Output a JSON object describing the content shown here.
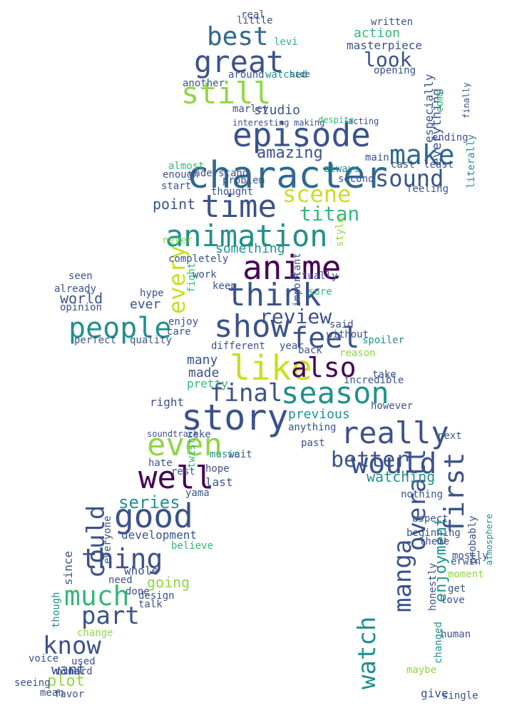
{
  "palette": {
    "deep_purple": "#440154",
    "indigo": "#3b528b",
    "steel_blue": "#31688e",
    "teal": "#21918c",
    "green": "#35b779",
    "lime": "#90d743",
    "yellow": "#c8e020"
  },
  "words": [
    {
      "text": "character",
      "color": "#31688e"
    },
    {
      "text": "episode",
      "color": "#3b528b"
    },
    {
      "text": "anime",
      "color": "#440154"
    },
    {
      "text": "animation",
      "color": "#21918c"
    },
    {
      "text": "story",
      "color": "#3b528b"
    },
    {
      "text": "like",
      "color": "#c8e020"
    },
    {
      "text": "think",
      "color": "#3b528b"
    },
    {
      "text": "show",
      "color": "#3b528b"
    },
    {
      "text": "time",
      "color": "#3b528b"
    },
    {
      "text": "great",
      "color": "#3b528b"
    },
    {
      "text": "still",
      "color": "#90d743"
    },
    {
      "text": "best",
      "color": "#31688e"
    },
    {
      "text": "make",
      "color": "#31688e"
    },
    {
      "text": "sound",
      "color": "#3b528b"
    },
    {
      "text": "scene",
      "color": "#c8e020"
    },
    {
      "text": "people",
      "color": "#21918c"
    },
    {
      "text": "feel",
      "color": "#3b528b"
    },
    {
      "text": "also",
      "color": "#440154"
    },
    {
      "text": "season",
      "color": "#21918c"
    },
    {
      "text": "final",
      "color": "#3b528b"
    },
    {
      "text": "really",
      "color": "#3b528b"
    },
    {
      "text": "even",
      "color": "#90d743"
    },
    {
      "text": "well",
      "color": "#440154"
    },
    {
      "text": "good",
      "color": "#3b528b"
    },
    {
      "text": "would",
      "color": "#3b528b"
    },
    {
      "text": "first",
      "color": "#3b528b"
    },
    {
      "text": "overall",
      "color": "#3b528b"
    },
    {
      "text": "manga",
      "color": "#3b528b"
    },
    {
      "text": "watch",
      "color": "#21918c"
    },
    {
      "text": "thing",
      "color": "#3b528b"
    },
    {
      "text": "much",
      "color": "#35b779"
    },
    {
      "text": "could",
      "color": "#3b528b"
    },
    {
      "text": "part",
      "color": "#3b528b"
    },
    {
      "text": "know",
      "color": "#3b528b"
    },
    {
      "text": "better",
      "color": "#3b528b"
    },
    {
      "text": "every",
      "color": "#c8e020"
    },
    {
      "text": "review",
      "color": "#3b528b"
    },
    {
      "text": "titan",
      "color": "#35b779"
    },
    {
      "text": "look",
      "color": "#3b528b"
    },
    {
      "text": "amazing",
      "color": "#3b528b"
    },
    {
      "text": "series",
      "color": "#21918c"
    },
    {
      "text": "watching",
      "color": "#21918c"
    },
    {
      "text": "enjoyment",
      "color": "#21918c"
    },
    {
      "text": "action",
      "color": "#35b779"
    },
    {
      "text": "masterpiece",
      "color": "#3b528b"
    },
    {
      "text": "everything",
      "color": "#3b528b"
    },
    {
      "text": "world",
      "color": "#3b528b"
    },
    {
      "text": "plot",
      "color": "#90d743"
    },
    {
      "text": "going",
      "color": "#90d743"
    },
    {
      "text": "development",
      "color": "#3b528b"
    },
    {
      "text": "previous",
      "color": "#21918c"
    },
    {
      "text": "something",
      "color": "#21918c"
    },
    {
      "text": "studio",
      "color": "#3b528b"
    },
    {
      "text": "point",
      "color": "#3b528b"
    },
    {
      "text": "many",
      "color": "#3b528b"
    },
    {
      "text": "made",
      "color": "#3b528b"
    },
    {
      "text": "pretty",
      "color": "#35b779"
    },
    {
      "text": "right",
      "color": "#3b528b"
    },
    {
      "text": "want",
      "color": "#3b528b"
    },
    {
      "text": "ever",
      "color": "#3b528b"
    },
    {
      "text": "since",
      "color": "#3b528b"
    },
    {
      "text": "whole",
      "color": "#3b528b"
    },
    {
      "text": "last",
      "color": "#3b528b"
    },
    {
      "text": "music",
      "color": "#21918c"
    },
    {
      "text": "seen",
      "color": "#3b528b"
    },
    {
      "text": "opinion",
      "color": "#3b528b"
    },
    {
      "text": "perfect",
      "color": "#3b528b"
    },
    {
      "text": "quality",
      "color": "#3b528b"
    },
    {
      "text": "hype",
      "color": "#3b528b"
    },
    {
      "text": "enjoy",
      "color": "#3b528b"
    },
    {
      "text": "care",
      "color": "#3b528b"
    },
    {
      "text": "fight",
      "color": "#35b779"
    },
    {
      "text": "understand",
      "color": "#3b528b"
    },
    {
      "text": "thought",
      "color": "#3b528b"
    },
    {
      "text": "start",
      "color": "#3b528b"
    },
    {
      "text": "always",
      "color": "#21918c"
    },
    {
      "text": "second",
      "color": "#3b528b"
    },
    {
      "text": "spoiler",
      "color": "#21918c"
    },
    {
      "text": "opening",
      "color": "#3b528b"
    },
    {
      "text": "ending",
      "color": "#3b528b"
    },
    {
      "text": "feeling",
      "color": "#3b528b"
    },
    {
      "text": "least",
      "color": "#3b528b"
    },
    {
      "text": "cast",
      "color": "#3b528b"
    },
    {
      "text": "main",
      "color": "#3b528b"
    },
    {
      "text": "problem",
      "color": "#3b528b"
    },
    {
      "text": "written",
      "color": "#3b528b"
    },
    {
      "text": "marley",
      "color": "#3b528b"
    },
    {
      "text": "around",
      "color": "#3b528b"
    },
    {
      "text": "watched",
      "color": "#21918c"
    },
    {
      "text": "another",
      "color": "#3b528b"
    },
    {
      "text": "little",
      "color": "#3b528b"
    },
    {
      "text": "levi",
      "color": "#35b779"
    },
    {
      "text": "interesting",
      "color": "#3b528b"
    },
    {
      "text": "making",
      "color": "#3b528b"
    },
    {
      "text": "despite",
      "color": "#35b779"
    },
    {
      "text": "acting",
      "color": "#3b528b"
    },
    {
      "text": "side",
      "color": "#3b528b"
    },
    {
      "text": "come",
      "color": "#35b779"
    },
    {
      "text": "especially",
      "color": "#3b528b"
    },
    {
      "text": "never",
      "color": "#90d743"
    },
    {
      "text": "completely",
      "color": "#3b528b"
    },
    {
      "text": "work",
      "color": "#3b528b"
    },
    {
      "text": "actually",
      "color": "#3b528b"
    },
    {
      "text": "keep",
      "color": "#3b528b"
    },
    {
      "text": "sure",
      "color": "#35b779"
    },
    {
      "text": "said",
      "color": "#3b528b"
    },
    {
      "text": "without",
      "color": "#3b528b"
    },
    {
      "text": "year",
      "color": "#3b528b"
    },
    {
      "text": "back",
      "color": "#3b528b"
    },
    {
      "text": "different",
      "color": "#3b528b"
    },
    {
      "text": "reason",
      "color": "#90d743"
    },
    {
      "text": "take",
      "color": "#3b528b"
    },
    {
      "text": "however",
      "color": "#3b528b"
    },
    {
      "text": "anything",
      "color": "#3b528b"
    },
    {
      "text": "soundtrack",
      "color": "#3b528b"
    },
    {
      "text": "zeke",
      "color": "#3b528b"
    },
    {
      "text": "wait",
      "color": "#3b528b"
    },
    {
      "text": "hate",
      "color": "#3b528b"
    },
    {
      "text": "rest",
      "color": "#3b528b"
    },
    {
      "text": "hope",
      "color": "#3b528b"
    },
    {
      "text": "yama",
      "color": "#3b528b"
    },
    {
      "text": "next",
      "color": "#3b528b"
    },
    {
      "text": "past",
      "color": "#3b528b"
    },
    {
      "text": "nothing",
      "color": "#3b528b"
    },
    {
      "text": "theme",
      "color": "#3b528b"
    },
    {
      "text": "love",
      "color": "#3b528b"
    },
    {
      "text": "moment",
      "color": "#90d743"
    },
    {
      "text": "get",
      "color": "#3b528b"
    },
    {
      "text": "honestly",
      "color": "#3b528b"
    },
    {
      "text": "changed",
      "color": "#21918c"
    },
    {
      "text": "probably",
      "color": "#3b528b"
    },
    {
      "text": "give",
      "color": "#3b528b"
    },
    {
      "text": "maybe",
      "color": "#90d743"
    },
    {
      "text": "single",
      "color": "#3b528b"
    },
    {
      "text": "believe",
      "color": "#35b779"
    },
    {
      "text": "design",
      "color": "#3b528b"
    },
    {
      "text": "done",
      "color": "#3b528b"
    },
    {
      "text": "change",
      "color": "#90d743"
    },
    {
      "text": "used",
      "color": "#3b528b"
    },
    {
      "text": "hard",
      "color": "#3b528b"
    },
    {
      "text": "mean",
      "color": "#3b528b"
    },
    {
      "text": "favor",
      "color": "#3b528b"
    },
    {
      "text": "seeing",
      "color": "#3b528b"
    },
    {
      "text": "voice",
      "color": "#3b528b"
    },
    {
      "text": "mind",
      "color": "#3b528b"
    },
    {
      "text": "though",
      "color": "#21918c"
    },
    {
      "text": "need",
      "color": "#3b528b"
    },
    {
      "text": "everyone",
      "color": "#3b528b"
    },
    {
      "text": "already",
      "color": "#3b528b"
    },
    {
      "text": "real",
      "color": "#3b528b"
    },
    {
      "text": "atmosphere",
      "color": "#21918c"
    },
    {
      "text": "erwin",
      "color": "#3b528b"
    },
    {
      "text": "aspect",
      "color": "#3b528b"
    },
    {
      "text": "beginning",
      "color": "#3b528b"
    },
    {
      "text": "human",
      "color": "#3b528b"
    },
    {
      "text": "talk",
      "color": "#3b528b"
    },
    {
      "text": "almost",
      "color": "#35b779"
    },
    {
      "text": "enough",
      "color": "#3b528b"
    },
    {
      "text": "incredible",
      "color": "#3b528b"
    },
    {
      "text": "important",
      "color": "#3b528b"
    },
    {
      "text": "style",
      "color": "#90d743"
    },
    {
      "text": "twist",
      "color": "#35b779"
    },
    {
      "text": "finally",
      "color": "#3b528b"
    },
    {
      "text": "literally",
      "color": "#21918c"
    },
    {
      "text": "mostly",
      "color": "#3b528b"
    }
  ]
}
